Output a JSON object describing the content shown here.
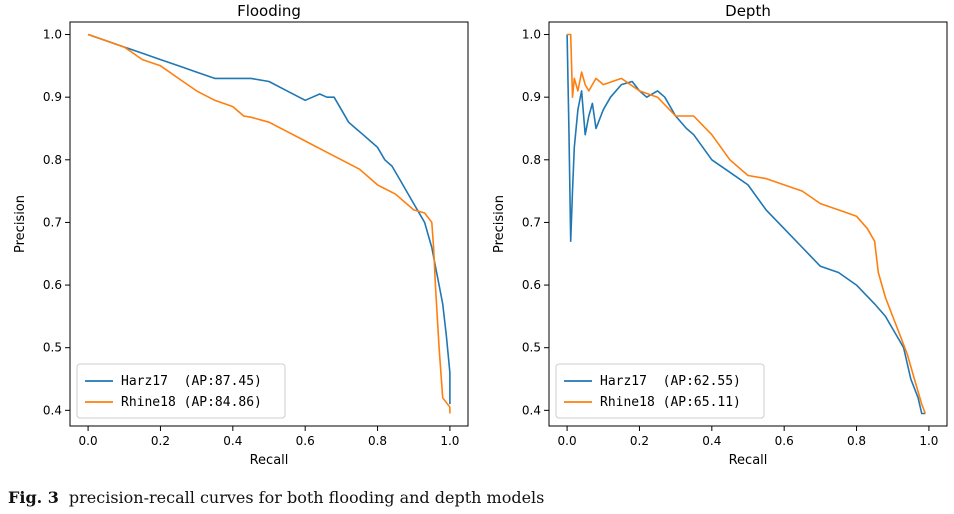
{
  "caption": {
    "label": "Fig. 3",
    "text": "precision-recall curves for both flooding and depth models"
  },
  "colors": {
    "series1": "#1f77b4",
    "series2": "#ff7f0e"
  },
  "chart_data": [
    {
      "type": "line",
      "title": "Flooding",
      "xlabel": "Recall",
      "ylabel": "Precision",
      "xlim": [
        -0.05,
        1.05
      ],
      "ylim": [
        0.375,
        1.02
      ],
      "xticks": [
        "0.0",
        "0.2",
        "0.4",
        "0.6",
        "0.8",
        "1.0"
      ],
      "yticks": [
        "0.4",
        "0.5",
        "0.6",
        "0.7",
        "0.8",
        "0.9",
        "1.0"
      ],
      "grid": false,
      "legend_position": "bottom-left",
      "series": [
        {
          "name": "Harz17  (AP:87.45)",
          "x": [
            0.0,
            0.05,
            0.1,
            0.15,
            0.2,
            0.25,
            0.3,
            0.35,
            0.4,
            0.45,
            0.5,
            0.55,
            0.6,
            0.62,
            0.64,
            0.66,
            0.68,
            0.7,
            0.72,
            0.74,
            0.76,
            0.78,
            0.8,
            0.82,
            0.84,
            0.86,
            0.88,
            0.9,
            0.92,
            0.93,
            0.94,
            0.95,
            0.96,
            0.97,
            0.98,
            0.99,
            1.0,
            1.0
          ],
          "y": [
            1.0,
            0.99,
            0.98,
            0.97,
            0.96,
            0.95,
            0.94,
            0.93,
            0.93,
            0.93,
            0.925,
            0.91,
            0.895,
            0.9,
            0.905,
            0.9,
            0.9,
            0.88,
            0.86,
            0.85,
            0.84,
            0.83,
            0.82,
            0.8,
            0.79,
            0.77,
            0.75,
            0.73,
            0.71,
            0.7,
            0.68,
            0.66,
            0.63,
            0.6,
            0.57,
            0.52,
            0.46,
            0.41
          ]
        },
        {
          "name": "Rhine18 (AP:84.86)",
          "x": [
            0.0,
            0.05,
            0.1,
            0.15,
            0.2,
            0.25,
            0.3,
            0.35,
            0.4,
            0.43,
            0.45,
            0.5,
            0.55,
            0.6,
            0.65,
            0.7,
            0.75,
            0.8,
            0.85,
            0.9,
            0.93,
            0.95,
            0.955,
            0.96,
            0.97,
            0.98,
            1.0,
            1.0
          ],
          "y": [
            1.0,
            0.99,
            0.98,
            0.96,
            0.95,
            0.93,
            0.91,
            0.895,
            0.885,
            0.87,
            0.868,
            0.86,
            0.845,
            0.83,
            0.815,
            0.8,
            0.785,
            0.76,
            0.745,
            0.72,
            0.715,
            0.7,
            0.66,
            0.6,
            0.5,
            0.42,
            0.405,
            0.395
          ]
        }
      ]
    },
    {
      "type": "line",
      "title": "Depth",
      "xlabel": "Recall",
      "ylabel": "Precision",
      "xlim": [
        -0.05,
        1.05
      ],
      "ylim": [
        0.375,
        1.02
      ],
      "xticks": [
        "0.0",
        "0.2",
        "0.4",
        "0.6",
        "0.8",
        "1.0"
      ],
      "yticks": [
        "0.4",
        "0.5",
        "0.6",
        "0.7",
        "0.8",
        "0.9",
        "1.0"
      ],
      "grid": false,
      "legend_position": "bottom-left",
      "series": [
        {
          "name": "Harz17  (AP:62.55)",
          "x": [
            0.0,
            0.005,
            0.01,
            0.015,
            0.02,
            0.03,
            0.04,
            0.05,
            0.06,
            0.07,
            0.08,
            0.1,
            0.12,
            0.15,
            0.18,
            0.2,
            0.22,
            0.25,
            0.27,
            0.3,
            0.33,
            0.35,
            0.4,
            0.45,
            0.5,
            0.55,
            0.6,
            0.65,
            0.7,
            0.75,
            0.8,
            0.85,
            0.88,
            0.9,
            0.92,
            0.93,
            0.95,
            0.97,
            0.98,
            0.99
          ],
          "y": [
            1.0,
            0.85,
            0.67,
            0.75,
            0.82,
            0.88,
            0.91,
            0.84,
            0.87,
            0.89,
            0.85,
            0.88,
            0.9,
            0.92,
            0.925,
            0.91,
            0.9,
            0.91,
            0.9,
            0.87,
            0.85,
            0.84,
            0.8,
            0.78,
            0.76,
            0.72,
            0.69,
            0.66,
            0.63,
            0.62,
            0.6,
            0.57,
            0.55,
            0.53,
            0.51,
            0.5,
            0.45,
            0.42,
            0.395,
            0.395
          ]
        },
        {
          "name": "Rhine18 (AP:65.11)",
          "x": [
            0.0,
            0.005,
            0.01,
            0.015,
            0.02,
            0.03,
            0.04,
            0.05,
            0.06,
            0.08,
            0.1,
            0.15,
            0.2,
            0.25,
            0.3,
            0.35,
            0.4,
            0.45,
            0.5,
            0.55,
            0.6,
            0.65,
            0.7,
            0.75,
            0.8,
            0.83,
            0.85,
            0.86,
            0.88,
            0.9,
            0.92,
            0.94,
            0.96,
            0.98,
            0.99
          ],
          "y": [
            1.0,
            1.0,
            1.0,
            0.9,
            0.93,
            0.91,
            0.94,
            0.92,
            0.91,
            0.93,
            0.92,
            0.93,
            0.91,
            0.9,
            0.87,
            0.87,
            0.84,
            0.8,
            0.775,
            0.77,
            0.76,
            0.75,
            0.73,
            0.72,
            0.71,
            0.69,
            0.67,
            0.62,
            0.58,
            0.55,
            0.52,
            0.49,
            0.45,
            0.41,
            0.395
          ]
        }
      ]
    }
  ]
}
